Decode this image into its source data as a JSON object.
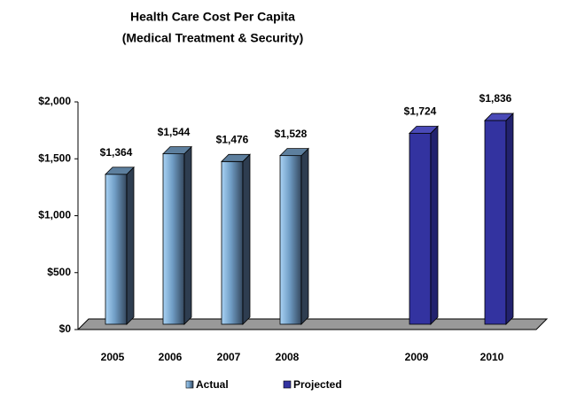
{
  "chart_data": {
    "type": "bar3d",
    "title": "Health Care Cost Per Capita",
    "subtitle": "(Medical Treatment  & Security)",
    "categories": [
      "2005",
      "2006",
      "2007",
      "2008",
      "2009",
      "2010"
    ],
    "series": [
      {
        "name": "Actual",
        "color": "#7fb3dc",
        "values": [
          1364,
          1544,
          1476,
          1528,
          null,
          null
        ],
        "value_labels": [
          "$1,364",
          "$1,544",
          "$1,476",
          "$1,528",
          null,
          null
        ]
      },
      {
        "name": "Projected",
        "color": "#3333a0",
        "values": [
          null,
          null,
          null,
          null,
          1724,
          1836
        ],
        "value_labels": [
          null,
          null,
          null,
          null,
          "$1,724",
          "$1,836"
        ]
      }
    ],
    "ylim": [
      0,
      2000
    ],
    "yticks": [
      {
        "value": 0,
        "label": "$0"
      },
      {
        "value": 500,
        "label": "$500"
      },
      {
        "value": 1000,
        "label": "$1,000"
      },
      {
        "value": 1500,
        "label": "$1,500"
      },
      {
        "value": 2000,
        "label": "$2,000"
      }
    ],
    "legend": "bottom"
  }
}
